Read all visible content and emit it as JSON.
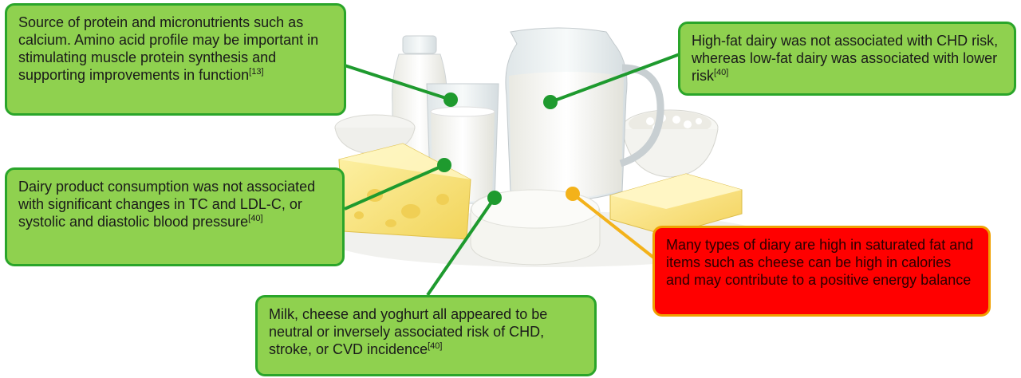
{
  "callouts": {
    "protein": {
      "text": "Source of protein and micronutrients such as calcium. Amino acid profile may be important in stimulating muscle protein synthesis and supporting improvements in function",
      "ref": "[13]"
    },
    "chd_risk": {
      "text": "High-fat dairy was not associated with CHD risk, whereas low-fat dairy was associated with lower risk",
      "ref": "[40]"
    },
    "tc_ldl": {
      "text": "Dairy product consumption was not associated with significant changes in TC and LDL-C, or systolic and diastolic blood pressure",
      "ref": "[40]"
    },
    "saturated_fat": {
      "text": "Many types of diary are high in saturated fat and items such as cheese can be high in calories and may contribute to a positive energy balance",
      "ref": ""
    },
    "cvd": {
      "text": "Milk, cheese and yoghurt all appeared to be neutral or inversely associated risk of CHD, stroke, or CVD incidence",
      "ref": "[40]"
    }
  },
  "colors": {
    "positive_fill": "#8fd14f",
    "positive_border": "#2aa52a",
    "negative_fill": "#ff0000",
    "negative_border": "#f0a000",
    "connector_green": "#1e9a2e",
    "connector_amber": "#f3b21a"
  }
}
